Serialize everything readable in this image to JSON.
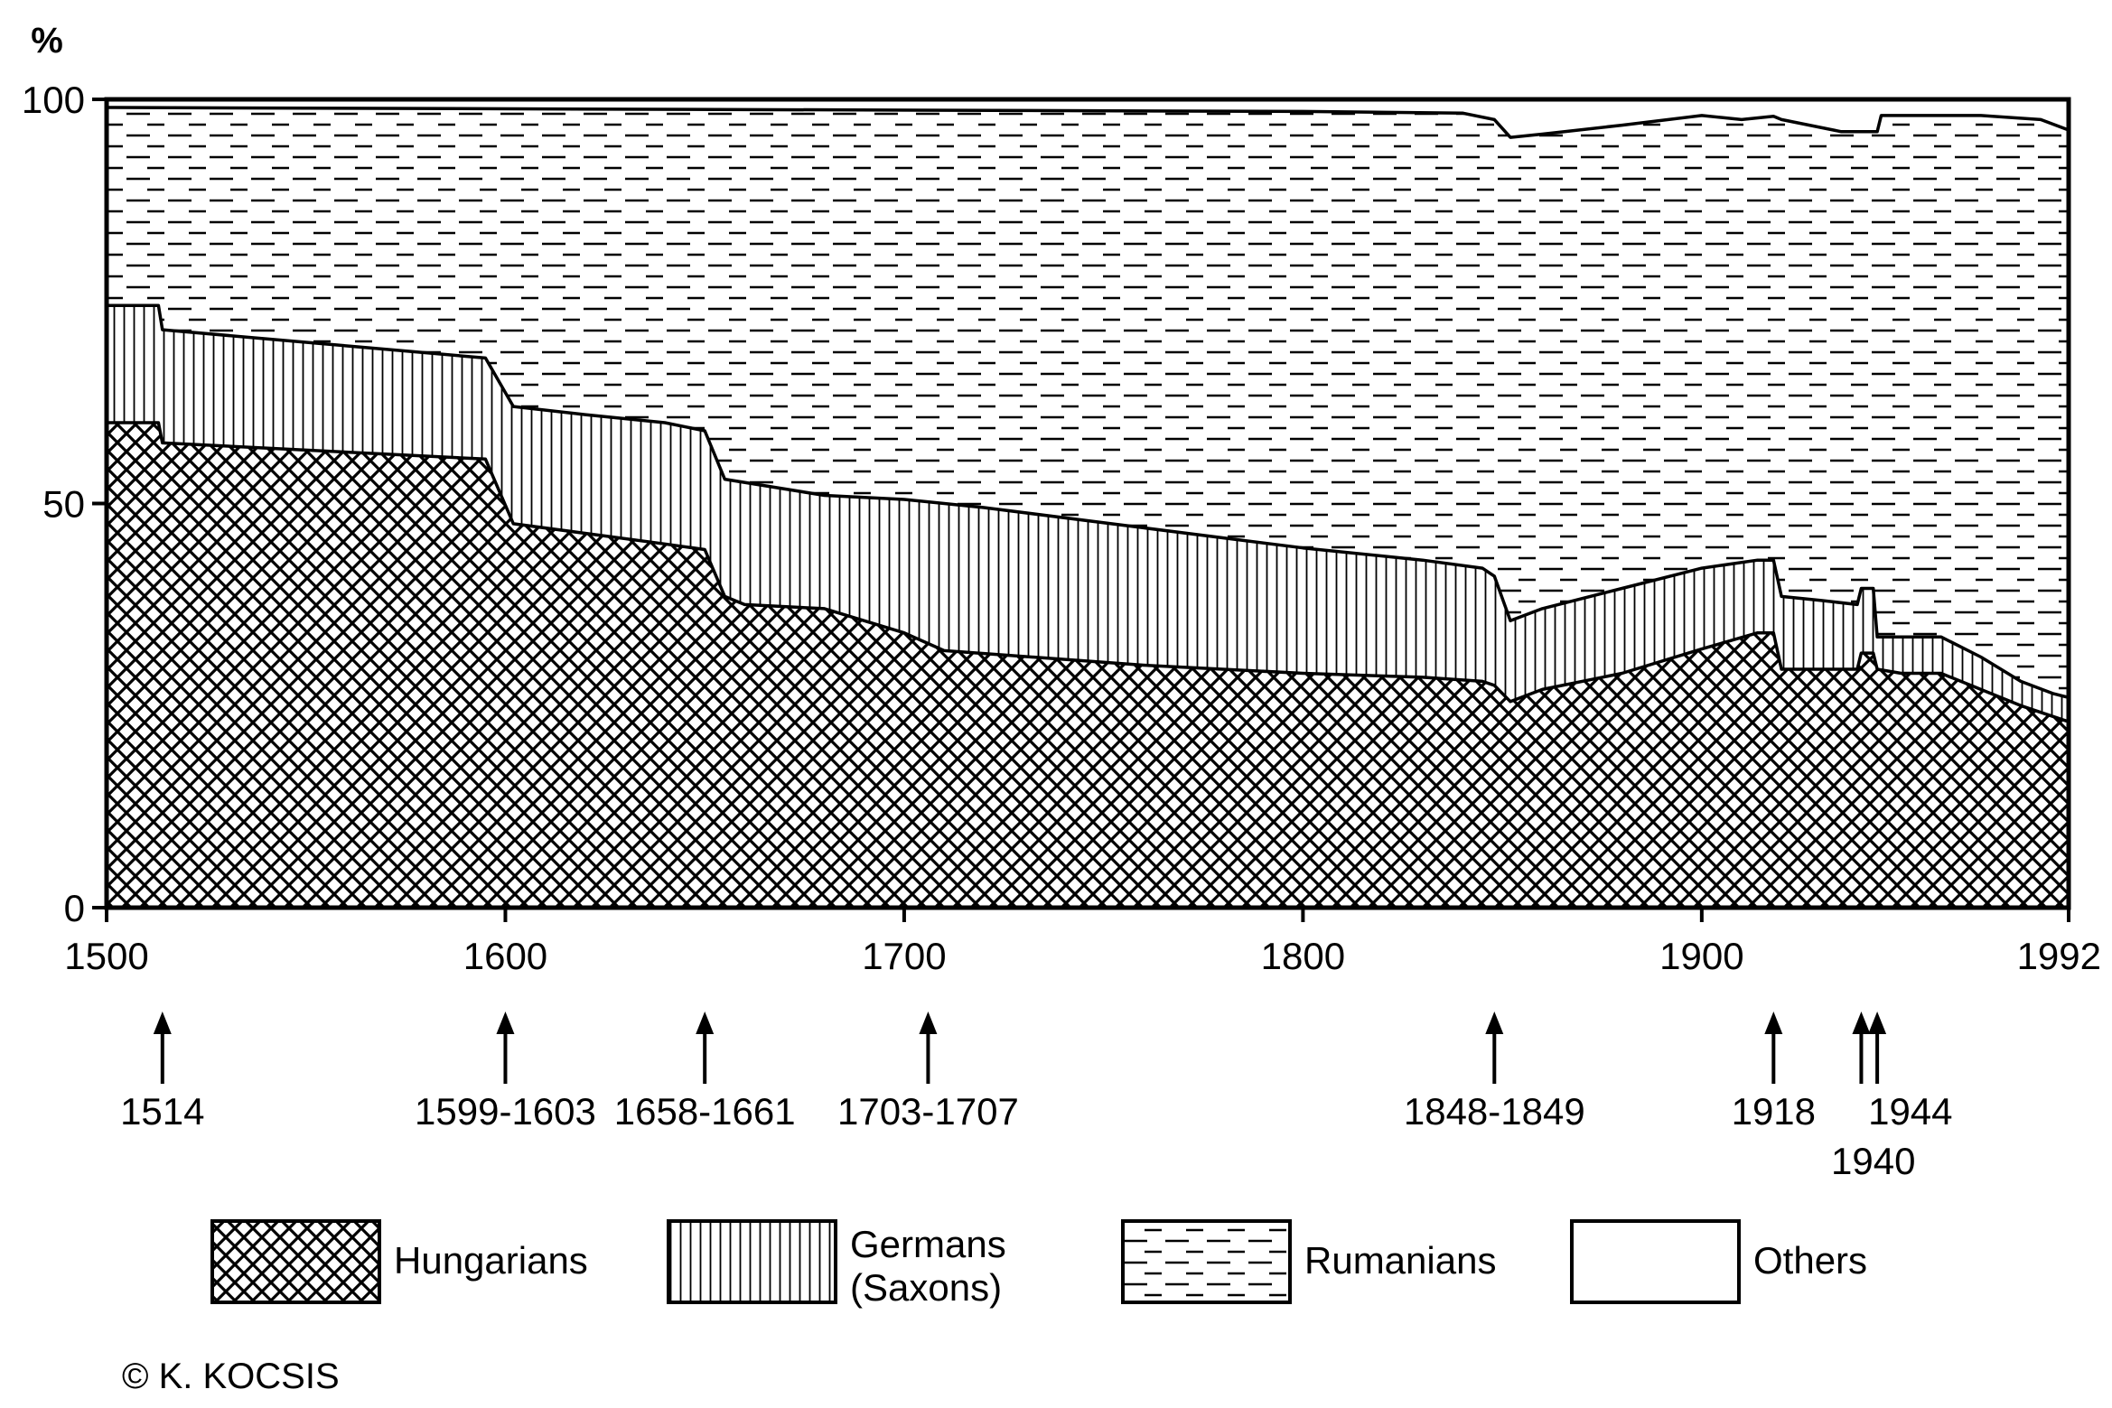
{
  "chart_data": {
    "type": "area",
    "stacked": true,
    "percent": true,
    "y_unit_label": "%",
    "xlim": [
      1500,
      1992
    ],
    "ylim": [
      0,
      100
    ],
    "x_ticks": [
      1500,
      1600,
      1700,
      1800,
      1900,
      1992
    ],
    "y_ticks": [
      0,
      50,
      100
    ],
    "grid": false,
    "legend_position": "bottom",
    "series": [
      {
        "name": "Hungarians",
        "pattern": "crosshatch",
        "upper_boundary": [
          [
            1500,
            60
          ],
          [
            1513,
            60
          ],
          [
            1514,
            57.5
          ],
          [
            1595,
            55.5
          ],
          [
            1602,
            47.5
          ],
          [
            1640,
            45
          ],
          [
            1650,
            44.3
          ],
          [
            1655,
            38.5
          ],
          [
            1660,
            37.5
          ],
          [
            1680,
            37
          ],
          [
            1700,
            34
          ],
          [
            1710,
            31.8
          ],
          [
            1760,
            30
          ],
          [
            1800,
            29
          ],
          [
            1830,
            28.5
          ],
          [
            1845,
            28
          ],
          [
            1848,
            27.5
          ],
          [
            1852,
            25.5
          ],
          [
            1860,
            27
          ],
          [
            1880,
            29
          ],
          [
            1900,
            32
          ],
          [
            1914,
            34
          ],
          [
            1918,
            34
          ],
          [
            1920,
            29.5
          ],
          [
            1930,
            29.5
          ],
          [
            1939,
            29.5
          ],
          [
            1940,
            31.5
          ],
          [
            1943,
            31.5
          ],
          [
            1944,
            29.5
          ],
          [
            1950,
            29
          ],
          [
            1960,
            29
          ],
          [
            1970,
            27
          ],
          [
            1980,
            25
          ],
          [
            1992,
            23
          ]
        ]
      },
      {
        "name": "Germans (Saxons)",
        "pattern": "vertical-lines",
        "upper_boundary": [
          [
            1500,
            74.5
          ],
          [
            1513,
            74.5
          ],
          [
            1514,
            71.5
          ],
          [
            1595,
            68
          ],
          [
            1602,
            62
          ],
          [
            1620,
            61
          ],
          [
            1640,
            60
          ],
          [
            1650,
            59
          ],
          [
            1655,
            53
          ],
          [
            1680,
            51
          ],
          [
            1700,
            50.5
          ],
          [
            1720,
            49.5
          ],
          [
            1760,
            47
          ],
          [
            1800,
            44.5
          ],
          [
            1830,
            43
          ],
          [
            1845,
            42
          ],
          [
            1848,
            41
          ],
          [
            1852,
            35.5
          ],
          [
            1860,
            37
          ],
          [
            1880,
            39.5
          ],
          [
            1900,
            42
          ],
          [
            1914,
            43
          ],
          [
            1918,
            43
          ],
          [
            1920,
            38.5
          ],
          [
            1930,
            38
          ],
          [
            1939,
            37.5
          ],
          [
            1940,
            39.5
          ],
          [
            1943,
            39.5
          ],
          [
            1944,
            33.5
          ],
          [
            1950,
            33.5
          ],
          [
            1960,
            33.5
          ],
          [
            1970,
            31
          ],
          [
            1980,
            28
          ],
          [
            1988,
            26.5
          ],
          [
            1992,
            26
          ]
        ]
      },
      {
        "name": "Rumanians",
        "pattern": "dashed-horizontal",
        "upper_boundary": [
          [
            1500,
            99
          ],
          [
            1800,
            98.5
          ],
          [
            1840,
            98.3
          ],
          [
            1848,
            97.5
          ],
          [
            1852,
            95.3
          ],
          [
            1860,
            95.7
          ],
          [
            1880,
            96.8
          ],
          [
            1900,
            98
          ],
          [
            1910,
            97.5
          ],
          [
            1918,
            97.9
          ],
          [
            1920,
            97.5
          ],
          [
            1935,
            96
          ],
          [
            1944,
            96
          ],
          [
            1945,
            98
          ],
          [
            1970,
            98
          ],
          [
            1985,
            97.5
          ],
          [
            1992,
            96.2
          ]
        ]
      },
      {
        "name": "Others",
        "pattern": "blank",
        "upper_boundary": [
          [
            1500,
            100
          ],
          [
            1992,
            100
          ]
        ]
      }
    ],
    "legend": [
      {
        "label": "Hungarians",
        "pattern": "crosshatch"
      },
      {
        "label_lines": [
          "Germans",
          "(Saxons)"
        ],
        "pattern": "vertical-lines"
      },
      {
        "label": "Rumanians",
        "pattern": "dashed-horizontal"
      },
      {
        "label": "Others",
        "pattern": "blank"
      }
    ],
    "annotations": [
      {
        "year": 1514,
        "label": "1514"
      },
      {
        "year": 1600,
        "label": "1599-1603"
      },
      {
        "year": 1650,
        "label": "1658-1661"
      },
      {
        "year": 1706,
        "label": "1703-1707"
      },
      {
        "year": 1848,
        "label": "1848-1849"
      },
      {
        "year": 1918,
        "label": "1918"
      },
      {
        "year": 1940,
        "label": "1940",
        "lower": true
      },
      {
        "year": 1944,
        "label": "1944"
      }
    ],
    "credit": "© K. KOCSIS"
  }
}
